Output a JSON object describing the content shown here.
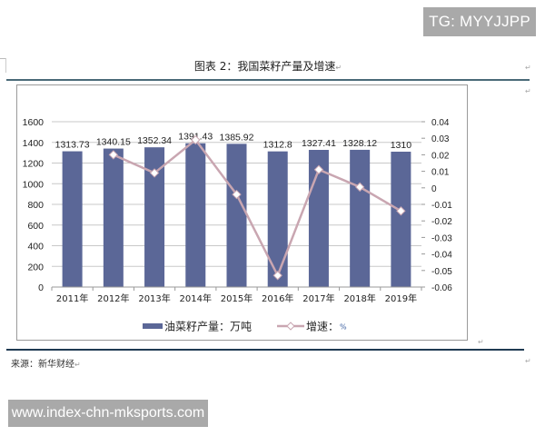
{
  "watermarks": {
    "top": "TG: MYYJJPP",
    "bottom": "www.index-chn-mksports.com"
  },
  "document": {
    "title": "图表 2：我国菜籽产量及增速",
    "source": "来源：新华财经",
    "paragraph_mark": "↵"
  },
  "colors": {
    "bar": "#5b6797",
    "line": "#c9a6b1",
    "marker_fill": "#ffffff",
    "grid": "#c8c8c8",
    "rule_top": "#4a6a78",
    "rule_bottom": "#1f3a52"
  },
  "chart_data": {
    "type": "bar+line",
    "title": "图表 2：我国菜籽产量及增速",
    "categories": [
      "2011年",
      "2012年",
      "2013年",
      "2014年",
      "2015年",
      "2016年",
      "2017年",
      "2018年",
      "2019年"
    ],
    "series": [
      {
        "name": "油菜籽产量：万吨",
        "type": "bar",
        "axis": "left",
        "values": [
          1313.73,
          1340.15,
          1352.34,
          1391.43,
          1385.92,
          1312.8,
          1327.41,
          1328.12,
          1310
        ],
        "labels": [
          "1313.73",
          "1340.15",
          "1352.34",
          "1391.43",
          "1385.92",
          "1312.8",
          "1327.41",
          "1328.12",
          "1310"
        ]
      },
      {
        "name": "增速：%",
        "type": "line",
        "axis": "right",
        "values": [
          null,
          0.02,
          0.009,
          0.029,
          -0.004,
          -0.053,
          0.011,
          0.0005,
          -0.014
        ]
      }
    ],
    "left_axis": {
      "min": 0,
      "max": 1600,
      "ticks": [
        "0",
        "200",
        "400",
        "600",
        "800",
        "1000",
        "1200",
        "1400",
        "1600"
      ]
    },
    "right_axis": {
      "min": -0.06,
      "max": 0.04,
      "ticks": [
        "0.04",
        "0.03",
        "0.02",
        "0.01",
        "0",
        "-0.01",
        "-0.02",
        "-0.03",
        "-0.04",
        "-0.05",
        "-0.06"
      ]
    },
    "xlabel": "",
    "ylabel": "",
    "grid": true,
    "legend_position": "bottom",
    "legend": [
      {
        "label": "油菜籽产量：万吨",
        "kind": "bar"
      },
      {
        "label": "增速：",
        "unit": "%",
        "kind": "line"
      }
    ]
  }
}
